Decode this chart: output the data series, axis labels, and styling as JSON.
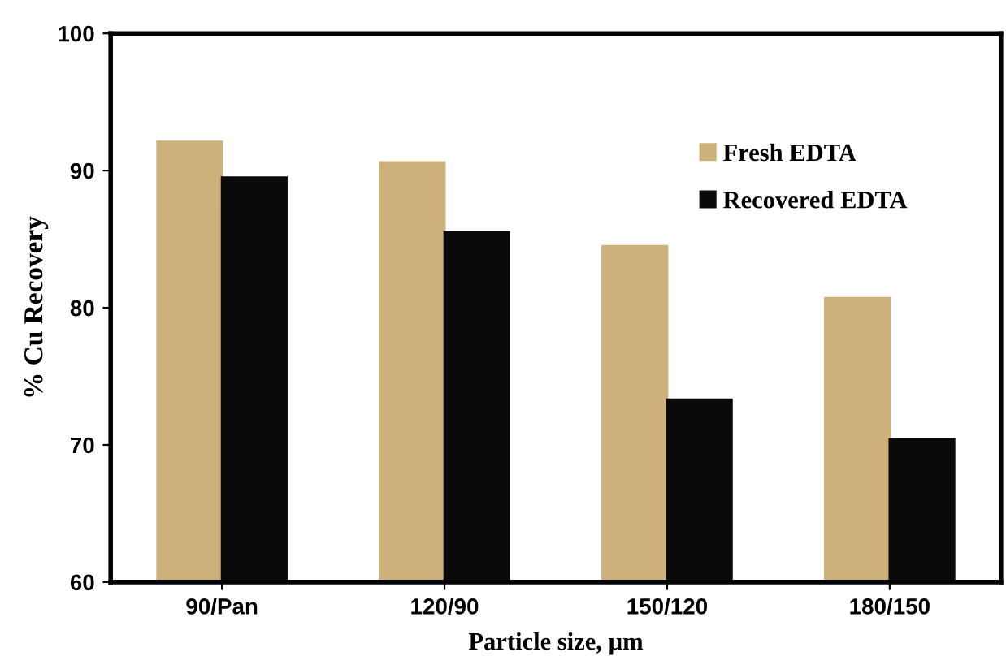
{
  "chart_data": {
    "type": "bar",
    "xlabel": "Particle size, µm",
    "ylabel": "% Cu Recovery",
    "categories": [
      "90/Pan",
      "120/90",
      "150/120",
      "180/150"
    ],
    "series": [
      {
        "name": "Fresh EDTA",
        "color": "#cdb07a",
        "values": [
          92.1,
          90.6,
          84.5,
          80.7
        ]
      },
      {
        "name": "Recovered EDTA",
        "color": "#0a0a0a",
        "values": [
          89.5,
          85.5,
          73.3,
          70.4
        ]
      }
    ],
    "ylim": [
      60,
      100
    ],
    "yticks": [
      60,
      70,
      80,
      90,
      100
    ],
    "grid": false,
    "legend": "top right"
  }
}
